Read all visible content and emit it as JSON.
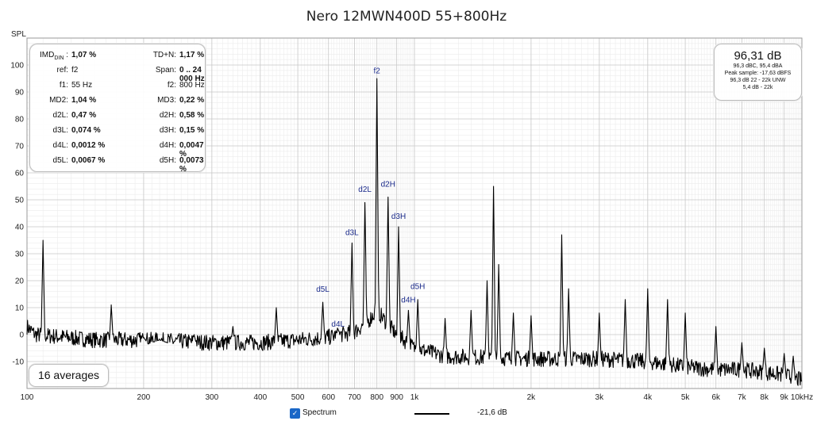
{
  "chart_data": {
    "type": "line",
    "title": "Nero 12MWN400D 55+800Hz",
    "ylabel": "SPL",
    "xlabel": "",
    "x_scale": "log",
    "xlim": [
      100,
      10000
    ],
    "ylim": [
      -20,
      110
    ],
    "grid": true,
    "x_ticks": [
      {
        "v": 100,
        "t": "100"
      },
      {
        "v": 200,
        "t": "200"
      },
      {
        "v": 300,
        "t": "300"
      },
      {
        "v": 400,
        "t": "400"
      },
      {
        "v": 500,
        "t": "500"
      },
      {
        "v": 600,
        "t": "600"
      },
      {
        "v": 700,
        "t": "700"
      },
      {
        "v": 800,
        "t": "800"
      },
      {
        "v": 900,
        "t": "900"
      },
      {
        "v": 1000,
        "t": "1k"
      },
      {
        "v": 2000,
        "t": "2k"
      },
      {
        "v": 3000,
        "t": "3k"
      },
      {
        "v": 4000,
        "t": "4k"
      },
      {
        "v": 5000,
        "t": "5k"
      },
      {
        "v": 6000,
        "t": "6k"
      },
      {
        "v": 7000,
        "t": "7k"
      },
      {
        "v": 8000,
        "t": "8k"
      },
      {
        "v": 9000,
        "t": "9k"
      },
      {
        "v": 10000,
        "t": "10kHz"
      }
    ],
    "y_ticks": [
      -10,
      0,
      10,
      20,
      30,
      40,
      50,
      60,
      70,
      80,
      90,
      100
    ],
    "series": [
      {
        "color": "#000000",
        "noise_floor": [
          [
            100,
            3
          ],
          [
            105,
            0
          ],
          [
            150,
            -2
          ],
          [
            200,
            -2
          ],
          [
            300,
            -3
          ],
          [
            400,
            -3
          ],
          [
            500,
            -2
          ],
          [
            600,
            -1
          ],
          [
            700,
            1
          ],
          [
            760,
            5
          ],
          [
            800,
            9
          ],
          [
            840,
            5
          ],
          [
            900,
            0
          ],
          [
            1000,
            -5
          ],
          [
            1200,
            -8
          ],
          [
            2000,
            -9
          ],
          [
            3000,
            -9
          ],
          [
            4000,
            -10
          ],
          [
            5000,
            -12
          ],
          [
            6000,
            -13
          ],
          [
            7000,
            -13
          ],
          [
            8000,
            -14
          ],
          [
            9000,
            -15
          ],
          [
            10000,
            -17
          ]
        ],
        "peaks": [
          {
            "x": 110,
            "y": 35
          },
          {
            "x": 165,
            "y": 11
          },
          {
            "x": 200,
            "y": -1
          },
          {
            "x": 220,
            "y": -2
          },
          {
            "x": 270,
            "y": 0
          },
          {
            "x": 340,
            "y": 3
          },
          {
            "x": 440,
            "y": 10
          },
          {
            "x": 580,
            "y": 12
          },
          {
            "x": 635,
            "y": 2
          },
          {
            "x": 690,
            "y": 34
          },
          {
            "x": 745,
            "y": 49
          },
          {
            "x": 800,
            "y": 95
          },
          {
            "x": 855,
            "y": 51
          },
          {
            "x": 910,
            "y": 40
          },
          {
            "x": 965,
            "y": 9
          },
          {
            "x": 1020,
            "y": 13
          },
          {
            "x": 1200,
            "y": 6
          },
          {
            "x": 1400,
            "y": 9
          },
          {
            "x": 1540,
            "y": 20
          },
          {
            "x": 1600,
            "y": 55
          },
          {
            "x": 1650,
            "y": 26
          },
          {
            "x": 1800,
            "y": 8
          },
          {
            "x": 2000,
            "y": 7
          },
          {
            "x": 2400,
            "y": 37
          },
          {
            "x": 2500,
            "y": 17
          },
          {
            "x": 3000,
            "y": 8
          },
          {
            "x": 3500,
            "y": 13
          },
          {
            "x": 4000,
            "y": 17
          },
          {
            "x": 4500,
            "y": 13
          },
          {
            "x": 5000,
            "y": 8
          },
          {
            "x": 6000,
            "y": 3
          },
          {
            "x": 7000,
            "y": -3
          },
          {
            "x": 8000,
            "y": -5
          },
          {
            "x": 9000,
            "y": -7
          },
          {
            "x": 9500,
            "y": -8
          }
        ]
      }
    ],
    "annotations": [
      {
        "text": "f2",
        "x": 800,
        "y": 96
      },
      {
        "text": "d2L",
        "x": 745,
        "y": 52
      },
      {
        "text": "d2H",
        "x": 855,
        "y": 54
      },
      {
        "text": "d3L",
        "x": 690,
        "y": 36
      },
      {
        "text": "d3H",
        "x": 910,
        "y": 42
      },
      {
        "text": "d5L",
        "x": 580,
        "y": 15
      },
      {
        "text": "d4L",
        "x": 635,
        "y": 2
      },
      {
        "text": "d5H",
        "x": 1020,
        "y": 16
      },
      {
        "text": "d4H",
        "x": 965,
        "y": 11
      }
    ]
  },
  "stats": {
    "rows": [
      {
        "l1": "IMD",
        "l1sub": "DIN",
        "l1suffix": " :",
        "v1": "1,07 %",
        "b1": true,
        "l2": "TD+N:",
        "v2": "1,17 %",
        "b2": true
      },
      {
        "l1": "ref:",
        "v1": "f2",
        "b1": false,
        "l2": "Span:",
        "v2": "0 .. 24 000 Hz",
        "b2": true
      },
      {
        "l1": "f1:",
        "v1": "55 Hz",
        "b1": false,
        "l2": "f2:",
        "v2": "800 Hz",
        "b2": false
      },
      {
        "l1": "MD2:",
        "v1": "1,04 %",
        "b1": true,
        "l2": "MD3:",
        "v2": "0,22 %",
        "b2": true
      },
      {
        "l1": "d2L:",
        "v1": "0,47 %",
        "b1": true,
        "l2": "d2H:",
        "v2": "0,58 %",
        "b2": true
      },
      {
        "l1": "d3L:",
        "v1": "0,074 %",
        "b1": true,
        "l2": "d3H:",
        "v2": "0,15 %",
        "b2": true
      },
      {
        "l1": "d4L:",
        "v1": "0,0012 %",
        "b1": true,
        "l2": "d4H:",
        "v2": "0,0047 %",
        "b2": true
      },
      {
        "l1": "d5L:",
        "v1": "0,0067 %",
        "b1": true,
        "l2": "d5H:",
        "v2": "0,0073 %",
        "b2": true
      }
    ]
  },
  "level": {
    "main": "96,31 dB",
    "lines": [
      "96,3 dBC, 95,4 dBA",
      "Peak sample: -17,63 dBFS",
      "96,3 dB 22 - 22k UNW",
      "5,4 dB - 22k"
    ]
  },
  "averages": "16 averages",
  "legend": {
    "checkbox": "✓",
    "label": "Spectrum",
    "value": "-21,6 dB"
  }
}
